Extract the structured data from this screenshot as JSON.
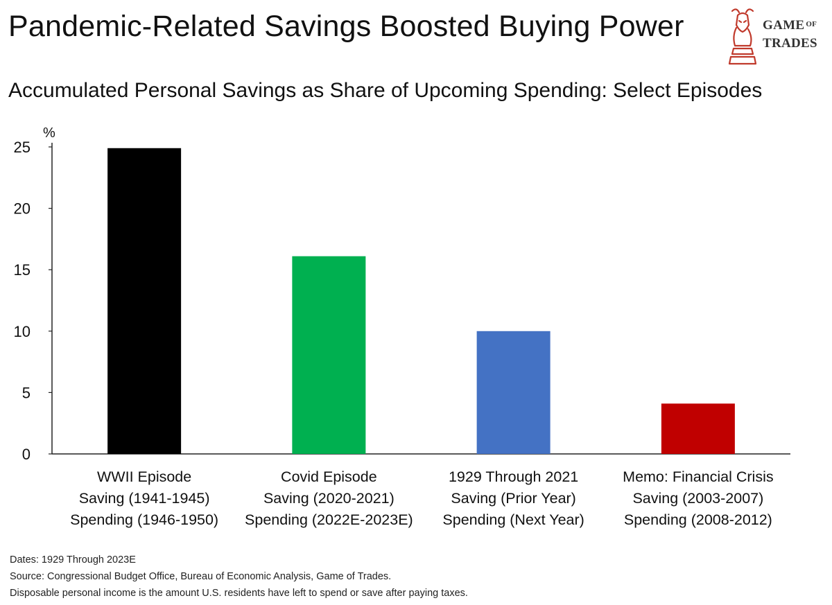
{
  "header": {
    "title": "Pandemic-Related Savings Boosted Buying Power",
    "subtitle": "Accumulated Personal Savings as Share of Upcoming Spending: Select Episodes"
  },
  "logo": {
    "line1": "Game",
    "line1_suffix": "of",
    "line2": "Trades",
    "icon": "bull-knight-chess-icon",
    "color": "#c0392b"
  },
  "chart_data": {
    "type": "bar",
    "y_unit_label": "%",
    "ylim": [
      0,
      25
    ],
    "yticks": [
      0,
      5,
      10,
      15,
      20,
      25
    ],
    "grid": false,
    "categories": [
      [
        "WWII Episode",
        "Saving (1941-1945)",
        "Spending (1946-1950)"
      ],
      [
        "Covid Episode",
        "Saving (2020-2021)",
        "Spending (2022E-2023E)"
      ],
      [
        "1929 Through 2021",
        "Saving (Prior Year)",
        "Spending (Next Year)"
      ],
      [
        "Memo: Financial Crisis",
        "Saving (2003-2007)",
        "Spending (2008-2012)"
      ]
    ],
    "values": [
      24.9,
      16.1,
      10.0,
      4.1
    ],
    "colors": [
      "#000000",
      "#00b050",
      "#4472c4",
      "#c00000"
    ]
  },
  "footnotes": [
    "Dates: 1929 Through 2023E",
    "Source: Congressional Budget Office, Bureau of Economic Analysis, Game of Trades.",
    "Disposable personal income is the amount U.S. residents have left to spend or save after paying taxes."
  ]
}
